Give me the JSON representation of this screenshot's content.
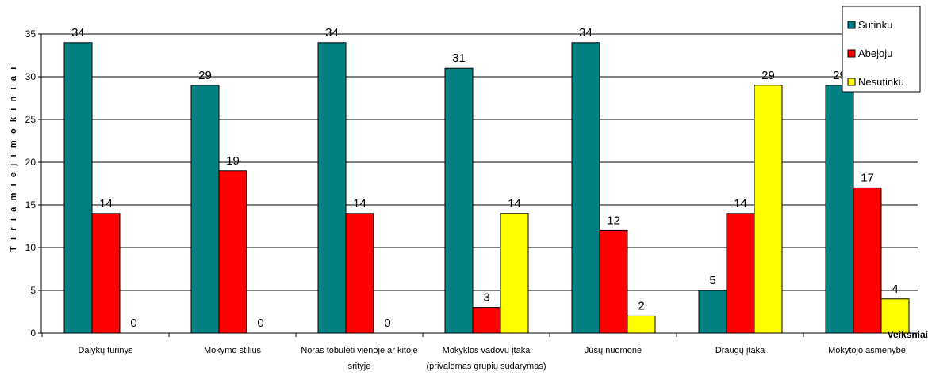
{
  "chart_data": {
    "type": "bar",
    "title": "",
    "ylabel": "T i r i a m i e j i  m o k i n i a i",
    "xlabel": "Veiksniai",
    "ylim": [
      0,
      35
    ],
    "yticks": [
      0,
      5,
      10,
      15,
      20,
      25,
      30,
      35
    ],
    "grid": true,
    "legend_position": "top-right",
    "categories": [
      [
        "Dalykų turinys"
      ],
      [
        "Mokymo stilius"
      ],
      [
        "Noras tobulėti vienoje ar kitoje",
        "srityje"
      ],
      [
        "Mokyklos vadovų įtaka",
        "(privalomas grupių sudarymas)"
      ],
      [
        "Jūsų nuomonė"
      ],
      [
        "Draugų įtaka"
      ],
      [
        "Mokytojo asmenybė"
      ]
    ],
    "series": [
      {
        "name": "Sutinku",
        "color": "#008080",
        "values": [
          34,
          29,
          34,
          31,
          34,
          5,
          29
        ]
      },
      {
        "name": "Abejoju",
        "color": "#ff0000",
        "values": [
          14,
          19,
          14,
          3,
          12,
          14,
          17
        ]
      },
      {
        "name": "Nesutinku",
        "color": "#ffff00",
        "values": [
          0,
          0,
          0,
          14,
          2,
          29,
          4
        ]
      }
    ]
  }
}
